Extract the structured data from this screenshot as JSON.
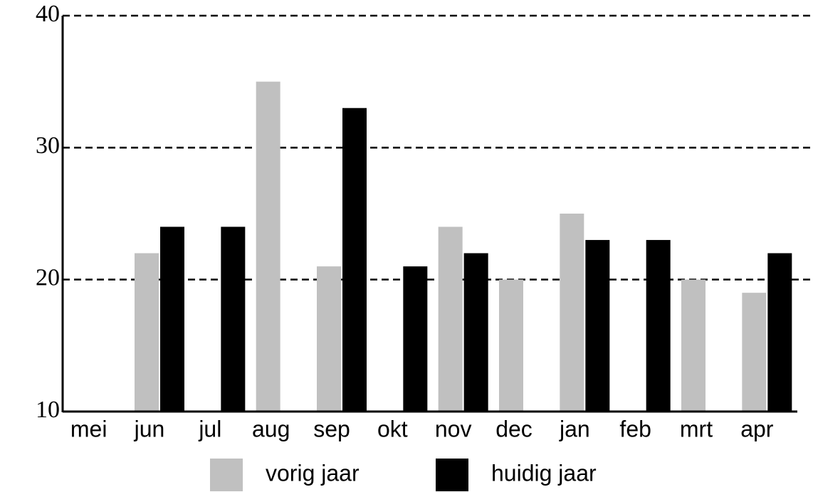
{
  "chart_data": {
    "type": "bar",
    "categories": [
      "mei",
      "jun",
      "jul",
      "aug",
      "sep",
      "okt",
      "nov",
      "dec",
      "jan",
      "feb",
      "mrt",
      "apr"
    ],
    "series": [
      {
        "name": "vorig jaar",
        "color": "#c0c0c0",
        "values": [
          null,
          22,
          null,
          35,
          21,
          null,
          24,
          20,
          25,
          null,
          20,
          19
        ]
      },
      {
        "name": "huidig jaar",
        "color": "#000000",
        "values": [
          null,
          24,
          24,
          null,
          33,
          21,
          22,
          null,
          23,
          23,
          null,
          22
        ]
      }
    ],
    "ylim": [
      10,
      40
    ],
    "yticks": [
      10,
      20,
      30,
      40
    ],
    "grid": true,
    "legend": "bottom"
  }
}
